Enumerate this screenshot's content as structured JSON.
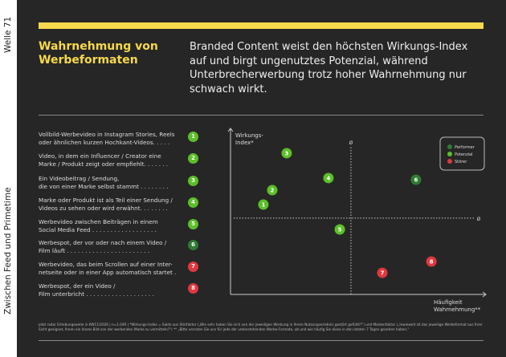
{
  "side": {
    "wave": "Welle 71",
    "section": "Zwischen Feed und Primetime"
  },
  "header": {
    "title": "Wahrnehmung von Werbeformaten",
    "lead": "Branded Content weist den höchsten Wirkungs-Index auf und birgt ungenutztes Potenzial, während Unterbrecherwerbung trotz hoher Wahrnehmung nur schwach wirkt."
  },
  "items": [
    {
      "n": "1",
      "text": "Vollbild-Werbevideo in Instagram Stories, Reels\noder ähnlichen kurzen Hochkant-Videos. . . . .",
      "cat": "Potenzial"
    },
    {
      "n": "2",
      "text": "Video, in dem ein Influencer / Creator eine\nMarke / Produkt zeigt oder empfiehlt. . . . . . .",
      "cat": "Potenzial"
    },
    {
      "n": "3",
      "text": "Ein Videobeitrag / Sendung,\ndie von einer Marke selbst stammt . . . . . . . .",
      "cat": "Potenzial"
    },
    {
      "n": "4",
      "text": "Marke oder Produkt ist als Teil einer Sendung /\nVideos zu sehen oder wird erwähnt. . . . . . . .",
      "cat": "Potenzial"
    },
    {
      "n": "5",
      "text": "Werbevideo zwischen Beiträgen in einem\nSocial Media Feed . . . . . . . . . . . . . . . . . .",
      "cat": "Potenzial"
    },
    {
      "n": "6",
      "text": "Werbespot, der vor oder nach einem Video /\nFilm läuft . . . . . . . . . . . . . . . . . . . . . . .",
      "cat": "Performer"
    },
    {
      "n": "7",
      "text": "Werbevideo, das beim Scrollen auf einer Inter-\nnetseite oder in einer App automatisch startet .",
      "cat": "Störer"
    },
    {
      "n": "8",
      "text": "Werbespot, der ein Video /\nFilm unterbricht . . . . . . . . . . . . . . . . . . .",
      "cat": "Störer"
    }
  ],
  "colors": {
    "Performer": "#2f7a34",
    "Potenzial": "#5cbf2a",
    "Störer": "#e0383e",
    "accent": "#f7d94c"
  },
  "chart_data": {
    "type": "scatter",
    "ylabel": "Wirkungs-Index*",
    "xlabel": "Häufigkeit Wahrnehmung**",
    "avg_label": "Ø",
    "avg": {
      "x": 47.6,
      "y": 46.6
    },
    "legend": {
      "position": "top-right",
      "entries": [
        "Performer",
        "Potenzial",
        "Störer"
      ]
    },
    "points": [
      {
        "label": "1",
        "x": 13.0,
        "y": 54.9,
        "cat": "Potenzial"
      },
      {
        "label": "2",
        "x": 16.5,
        "y": 63.7,
        "cat": "Potenzial"
      },
      {
        "label": "3",
        "x": 22.2,
        "y": 86.3,
        "cat": "Potenzial"
      },
      {
        "label": "4",
        "x": 38.7,
        "y": 71.1,
        "cat": "Potenzial"
      },
      {
        "label": "5",
        "x": 43.2,
        "y": 39.7,
        "cat": "Potenzial"
      },
      {
        "label": "6",
        "x": 73.3,
        "y": 70.1,
        "cat": "Performer"
      },
      {
        "label": "7",
        "x": 60.0,
        "y": 13.2,
        "cat": "Störer"
      },
      {
        "label": "8",
        "x": 79.4,
        "y": 20.1,
        "cat": "Störer"
      }
    ]
  },
  "footnote": "pilot radar Erhebungswelle in KW11/2026 | n=1.049 | *Wirkungs-Index = Saldo aus Störfaktor („Wie sehr haben Sie sich von der jeweiligen Werbung in Ihrem Nutzungserlebnis gestört gefühlt?\") und Markenfaktor („Inwieweit ist das jeweilige Werbeformat aus Ihrer Sicht geeignet, Ihnen ein klares Bild von der werbenden Marke zu vermitteln?\") ** „Bitte verraten Sie uns für jede der untenstehenden Werbe-Formate, ob und wie häufig Sie diese in den letzten 7 Tagen gesehen haben.\""
}
